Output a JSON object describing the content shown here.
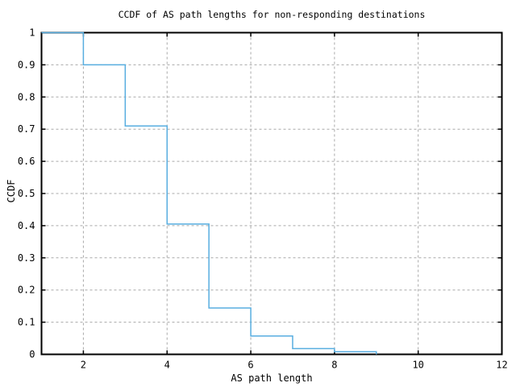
{
  "chart_data": {
    "type": "line",
    "subtype": "step-post",
    "title": "CCDF of AS path lengths for non-responding destinations",
    "xlabel": "AS path length",
    "ylabel": "CCDF",
    "xlim": [
      1,
      12
    ],
    "ylim": [
      0,
      1
    ],
    "xticks": [
      2,
      4,
      6,
      8,
      10,
      12
    ],
    "xtick_labels": [
      "2",
      "4",
      "6",
      "8",
      "10",
      "12"
    ],
    "yticks": [
      0,
      0.1,
      0.2,
      0.3,
      0.4,
      0.5,
      0.6,
      0.7,
      0.8,
      0.9,
      1
    ],
    "ytick_labels": [
      "0",
      "0.1",
      "0.2",
      "0.3",
      "0.4",
      "0.5",
      "0.6",
      "0.7",
      "0.8",
      "0.9",
      "1"
    ],
    "grid": true,
    "legend_position": "none",
    "colors": {
      "line": "#58AEE0",
      "grid": "#A9A9A9",
      "border": "#000000",
      "background": "#FFFFFF",
      "text": "#000000"
    },
    "series": [
      {
        "name": "CCDF",
        "step": "post",
        "x": [
          1,
          2,
          3,
          4,
          5,
          6,
          7,
          8,
          9
        ],
        "y": [
          1.0,
          0.9,
          0.71,
          0.405,
          0.144,
          0.057,
          0.018,
          0.008,
          0.0
        ]
      }
    ]
  }
}
